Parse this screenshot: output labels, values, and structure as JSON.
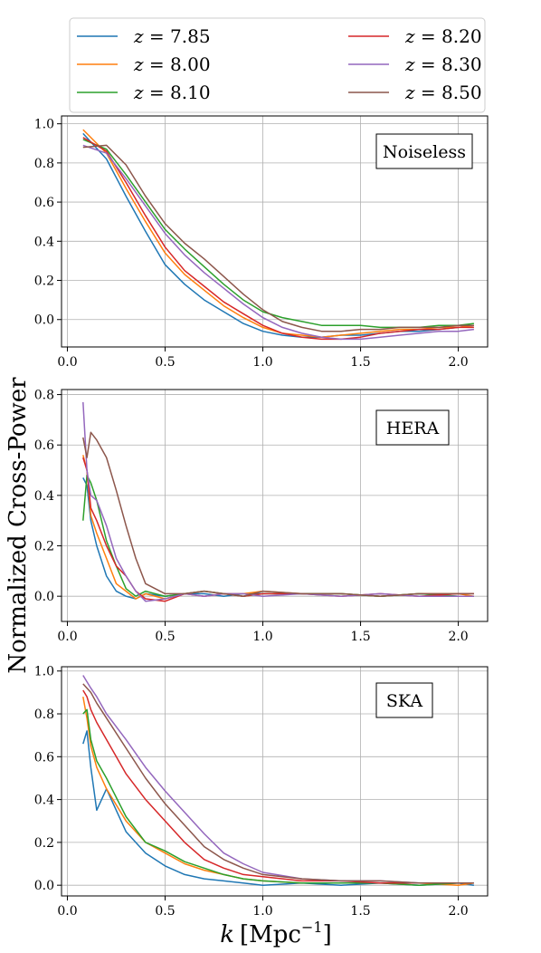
{
  "figure": {
    "ylabel": "Normalized Cross-Power",
    "xlabel_main": "k",
    "xlabel_unit": "[Mpc",
    "xlabel_exp": "−1",
    "xlabel_close": "]"
  },
  "legend": {
    "entries": [
      {
        "prefix": "z",
        "value": " = 7.85",
        "color": "#1f77b4"
      },
      {
        "prefix": "z",
        "value": " = 8.00",
        "color": "#ff7f0e"
      },
      {
        "prefix": "z",
        "value": " = 8.10",
        "color": "#2ca02c"
      },
      {
        "prefix": "z",
        "value": " = 8.20",
        "color": "#d62728"
      },
      {
        "prefix": "z",
        "value": " = 8.30",
        "color": "#9467bd"
      },
      {
        "prefix": "z",
        "value": " = 8.50",
        "color": "#8c564b"
      }
    ]
  },
  "chart_data": [
    {
      "type": "line",
      "annotation": "Noiseless",
      "xlim": [
        -0.03,
        2.15
      ],
      "ylim": [
        -0.14,
        1.04
      ],
      "xticks": [
        "0.0",
        "0.5",
        "1.0",
        "1.5",
        "2.0"
      ],
      "yticks": [
        "0.0",
        "0.2",
        "0.4",
        "0.6",
        "0.8",
        "1.0"
      ],
      "grid": true,
      "x": [
        0.08,
        0.2,
        0.3,
        0.4,
        0.5,
        0.6,
        0.7,
        0.8,
        0.9,
        1.0,
        1.1,
        1.2,
        1.3,
        1.4,
        1.5,
        1.6,
        1.7,
        1.8,
        1.9,
        2.0,
        2.08
      ],
      "series": [
        {
          "name": "z = 7.85",
          "color": "#1f77b4",
          "values": [
            0.95,
            0.82,
            0.63,
            0.45,
            0.28,
            0.18,
            0.1,
            0.04,
            -0.02,
            -0.06,
            -0.08,
            -0.09,
            -0.09,
            -0.08,
            -0.08,
            -0.07,
            -0.06,
            -0.06,
            -0.05,
            -0.04,
            -0.03
          ]
        },
        {
          "name": "z = 8.00",
          "color": "#ff7f0e",
          "values": [
            0.97,
            0.85,
            0.67,
            0.5,
            0.34,
            0.23,
            0.15,
            0.07,
            0.01,
            -0.04,
            -0.07,
            -0.08,
            -0.09,
            -0.08,
            -0.07,
            -0.06,
            -0.05,
            -0.05,
            -0.04,
            -0.04,
            -0.03
          ]
        },
        {
          "name": "z = 8.10",
          "color": "#2ca02c",
          "values": [
            0.92,
            0.87,
            0.74,
            0.6,
            0.46,
            0.36,
            0.27,
            0.18,
            0.1,
            0.04,
            0.01,
            -0.01,
            -0.03,
            -0.03,
            -0.03,
            -0.04,
            -0.04,
            -0.04,
            -0.03,
            -0.03,
            -0.02
          ]
        },
        {
          "name": "z = 8.20",
          "color": "#d62728",
          "values": [
            0.93,
            0.86,
            0.7,
            0.53,
            0.37,
            0.25,
            0.17,
            0.09,
            0.03,
            -0.03,
            -0.07,
            -0.09,
            -0.1,
            -0.1,
            -0.09,
            -0.07,
            -0.06,
            -0.05,
            -0.05,
            -0.04,
            -0.04
          ]
        },
        {
          "name": "z = 8.30",
          "color": "#9467bd",
          "values": [
            0.89,
            0.85,
            0.72,
            0.58,
            0.44,
            0.33,
            0.24,
            0.16,
            0.08,
            0.01,
            -0.04,
            -0.07,
            -0.09,
            -0.1,
            -0.1,
            -0.09,
            -0.08,
            -0.07,
            -0.06,
            -0.06,
            -0.05
          ]
        },
        {
          "name": "z = 8.50",
          "color": "#8c564b",
          "values": [
            0.88,
            0.89,
            0.79,
            0.63,
            0.49,
            0.39,
            0.31,
            0.22,
            0.13,
            0.05,
            -0.01,
            -0.04,
            -0.06,
            -0.06,
            -0.05,
            -0.05,
            -0.04,
            -0.04,
            -0.04,
            -0.03,
            -0.03
          ]
        }
      ]
    },
    {
      "type": "line",
      "annotation": "HERA",
      "xlim": [
        -0.03,
        2.15
      ],
      "ylim": [
        -0.1,
        0.82
      ],
      "xticks": [
        "0.0",
        "0.5",
        "1.0",
        "1.5",
        "2.0"
      ],
      "yticks": [
        "0.0",
        "0.2",
        "0.4",
        "0.6",
        "0.8"
      ],
      "grid": true,
      "x": [
        0.08,
        0.1,
        0.12,
        0.15,
        0.2,
        0.25,
        0.3,
        0.35,
        0.4,
        0.5,
        0.6,
        0.7,
        0.8,
        0.9,
        1.0,
        1.2,
        1.4,
        1.6,
        1.8,
        2.0,
        2.08
      ],
      "series": [
        {
          "name": "z = 7.85",
          "color": "#1f77b4",
          "values": [
            0.47,
            0.44,
            0.3,
            0.2,
            0.08,
            0.02,
            0.0,
            -0.01,
            0.01,
            0.0,
            0.01,
            0.01,
            0.0,
            0.01,
            0.01,
            0.01,
            0.01,
            0.0,
            0.01,
            0.0,
            0.0
          ]
        },
        {
          "name": "z = 8.00",
          "color": "#ff7f0e",
          "values": [
            0.56,
            0.5,
            0.32,
            0.25,
            0.15,
            0.05,
            0.02,
            -0.01,
            0.01,
            -0.01,
            0.01,
            0.02,
            0.01,
            0.01,
            0.02,
            0.01,
            0.01,
            0.0,
            0.01,
            0.01,
            0.0
          ]
        },
        {
          "name": "z = 8.10",
          "color": "#2ca02c",
          "values": [
            0.3,
            0.48,
            0.45,
            0.38,
            0.22,
            0.12,
            0.03,
            0.0,
            0.02,
            0.0,
            0.01,
            0.02,
            0.01,
            0.0,
            0.01,
            0.01,
            0.01,
            0.0,
            0.01,
            0.0,
            0.0
          ]
        },
        {
          "name": "z = 8.20",
          "color": "#d62728",
          "values": [
            0.55,
            0.5,
            0.35,
            0.3,
            0.2,
            0.12,
            0.08,
            0.02,
            -0.01,
            -0.02,
            0.01,
            0.0,
            0.01,
            0.0,
            0.01,
            0.01,
            0.0,
            0.01,
            0.0,
            0.01,
            0.01
          ]
        },
        {
          "name": "z = 8.30",
          "color": "#9467bd",
          "values": [
            0.77,
            0.5,
            0.4,
            0.38,
            0.28,
            0.15,
            0.08,
            0.02,
            -0.02,
            -0.01,
            0.01,
            0.0,
            0.01,
            0.01,
            0.0,
            0.01,
            0.0,
            0.01,
            0.0,
            0.0,
            0.0
          ]
        },
        {
          "name": "z = 8.50",
          "color": "#8c564b",
          "values": [
            0.63,
            0.55,
            0.65,
            0.62,
            0.55,
            0.42,
            0.28,
            0.15,
            0.05,
            0.01,
            0.01,
            0.02,
            0.01,
            0.0,
            0.02,
            0.01,
            0.01,
            0.0,
            0.01,
            0.01,
            0.01
          ]
        }
      ]
    },
    {
      "type": "line",
      "annotation": "SKA",
      "xlim": [
        -0.03,
        2.15
      ],
      "ylim": [
        -0.05,
        1.02
      ],
      "xticks": [
        "0.0",
        "0.5",
        "1.0",
        "1.5",
        "2.0"
      ],
      "yticks": [
        "0.0",
        "0.2",
        "0.4",
        "0.6",
        "0.8",
        "1.0"
      ],
      "grid": true,
      "x": [
        0.08,
        0.1,
        0.12,
        0.15,
        0.2,
        0.3,
        0.4,
        0.5,
        0.6,
        0.7,
        0.8,
        0.9,
        1.0,
        1.2,
        1.4,
        1.6,
        1.8,
        2.0,
        2.08
      ],
      "series": [
        {
          "name": "z = 7.85",
          "color": "#1f77b4",
          "values": [
            0.66,
            0.72,
            0.55,
            0.35,
            0.45,
            0.25,
            0.15,
            0.09,
            0.05,
            0.03,
            0.02,
            0.01,
            0.0,
            0.01,
            0.0,
            0.01,
            0.0,
            0.01,
            0.0
          ]
        },
        {
          "name": "z = 8.00",
          "color": "#ff7f0e",
          "values": [
            0.88,
            0.78,
            0.65,
            0.55,
            0.45,
            0.3,
            0.2,
            0.15,
            0.1,
            0.07,
            0.05,
            0.03,
            0.02,
            0.01,
            0.01,
            0.01,
            0.01,
            0.0,
            0.01
          ]
        },
        {
          "name": "z = 8.10",
          "color": "#2ca02c",
          "values": [
            0.8,
            0.82,
            0.68,
            0.58,
            0.5,
            0.32,
            0.2,
            0.16,
            0.11,
            0.08,
            0.05,
            0.03,
            0.02,
            0.01,
            0.01,
            0.01,
            0.0,
            0.01,
            0.01
          ]
        },
        {
          "name": "z = 8.20",
          "color": "#d62728",
          "values": [
            0.91,
            0.88,
            0.82,
            0.76,
            0.68,
            0.52,
            0.4,
            0.3,
            0.2,
            0.12,
            0.08,
            0.05,
            0.04,
            0.02,
            0.02,
            0.01,
            0.01,
            0.01,
            0.01
          ]
        },
        {
          "name": "z = 8.30",
          "color": "#9467bd",
          "values": [
            0.98,
            0.95,
            0.92,
            0.88,
            0.8,
            0.68,
            0.55,
            0.44,
            0.34,
            0.24,
            0.15,
            0.1,
            0.06,
            0.03,
            0.02,
            0.02,
            0.01,
            0.01,
            0.01
          ]
        },
        {
          "name": "z = 8.50",
          "color": "#8c564b",
          "values": [
            0.94,
            0.92,
            0.9,
            0.85,
            0.78,
            0.64,
            0.5,
            0.38,
            0.28,
            0.18,
            0.12,
            0.08,
            0.05,
            0.03,
            0.02,
            0.02,
            0.01,
            0.01,
            0.01
          ]
        }
      ]
    }
  ]
}
